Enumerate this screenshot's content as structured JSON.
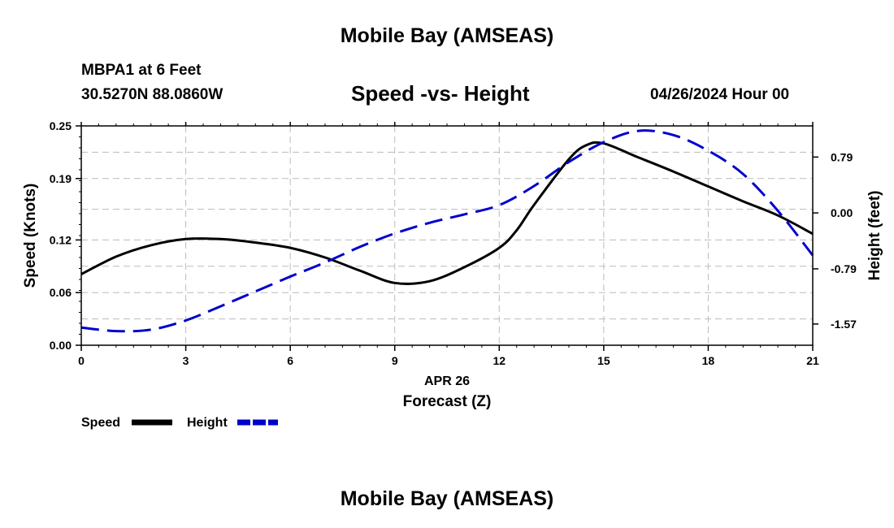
{
  "header": {
    "title": "Mobile Bay (AMSEAS)",
    "station": "MBPA1 at 6 Feet",
    "coords": "30.5270N  88.0860W",
    "subtitle": "Speed -vs- Height",
    "datetime": "04/26/2024 Hour 00"
  },
  "footer": {
    "title": "Mobile Bay (AMSEAS)"
  },
  "chart_data": {
    "type": "line",
    "title": "Speed -vs- Height",
    "xlabel": "Forecast (Z)",
    "xlabel_date": "APR 26",
    "ylabel": "Speed (Knots)",
    "y2label": "Height (feet)",
    "xlim": [
      0,
      21
    ],
    "ylim": [
      0,
      0.25
    ],
    "y2lim": [
      -1.87,
      1.23
    ],
    "x_ticks": [
      0,
      3,
      6,
      9,
      12,
      15,
      18,
      21
    ],
    "x_tick_labels": [
      "0",
      "3",
      "6",
      "9",
      "12",
      "15",
      "18",
      "21"
    ],
    "y_ticks": [
      0,
      0.06,
      0.12,
      0.19,
      0.25
    ],
    "y_tick_labels": [
      "0.00",
      "0.06",
      "0.12",
      "0.19",
      "0.25"
    ],
    "y2_ticks": [
      -1.57,
      -0.79,
      0.0,
      0.79
    ],
    "y2_tick_labels": [
      "-1.57",
      "-0.79",
      "0.00",
      "0.79"
    ],
    "grid": true,
    "legend_position": "bottom-left",
    "series": [
      {
        "name": "Speed",
        "axis": "left",
        "color": "#000000",
        "dash": "solid",
        "x": [
          0,
          1,
          2,
          3,
          4,
          5,
          6,
          7,
          8,
          9,
          10,
          11,
          12,
          12.5,
          13,
          14,
          14.5,
          15,
          16,
          17,
          18,
          19,
          20,
          21
        ],
        "values": [
          0.081,
          0.101,
          0.114,
          0.121,
          0.121,
          0.117,
          0.111,
          0.1,
          0.085,
          0.071,
          0.073,
          0.089,
          0.111,
          0.131,
          0.16,
          0.212,
          0.228,
          0.23,
          0.214,
          0.198,
          0.181,
          0.164,
          0.148,
          0.127
        ]
      },
      {
        "name": "Height",
        "axis": "right",
        "color": "#0000cc",
        "dash": "dashed",
        "x": [
          0,
          1,
          2,
          3,
          4,
          5,
          6,
          7,
          8,
          9,
          10,
          11,
          12,
          13,
          14,
          15,
          16,
          17,
          18,
          19,
          20,
          21
        ],
        "values": [
          -1.62,
          -1.67,
          -1.65,
          -1.52,
          -1.32,
          -1.11,
          -0.9,
          -0.7,
          -0.48,
          -0.29,
          -0.14,
          -0.02,
          0.11,
          0.38,
          0.72,
          1.0,
          1.16,
          1.1,
          0.88,
          0.55,
          0.03,
          -0.6
        ]
      }
    ]
  }
}
